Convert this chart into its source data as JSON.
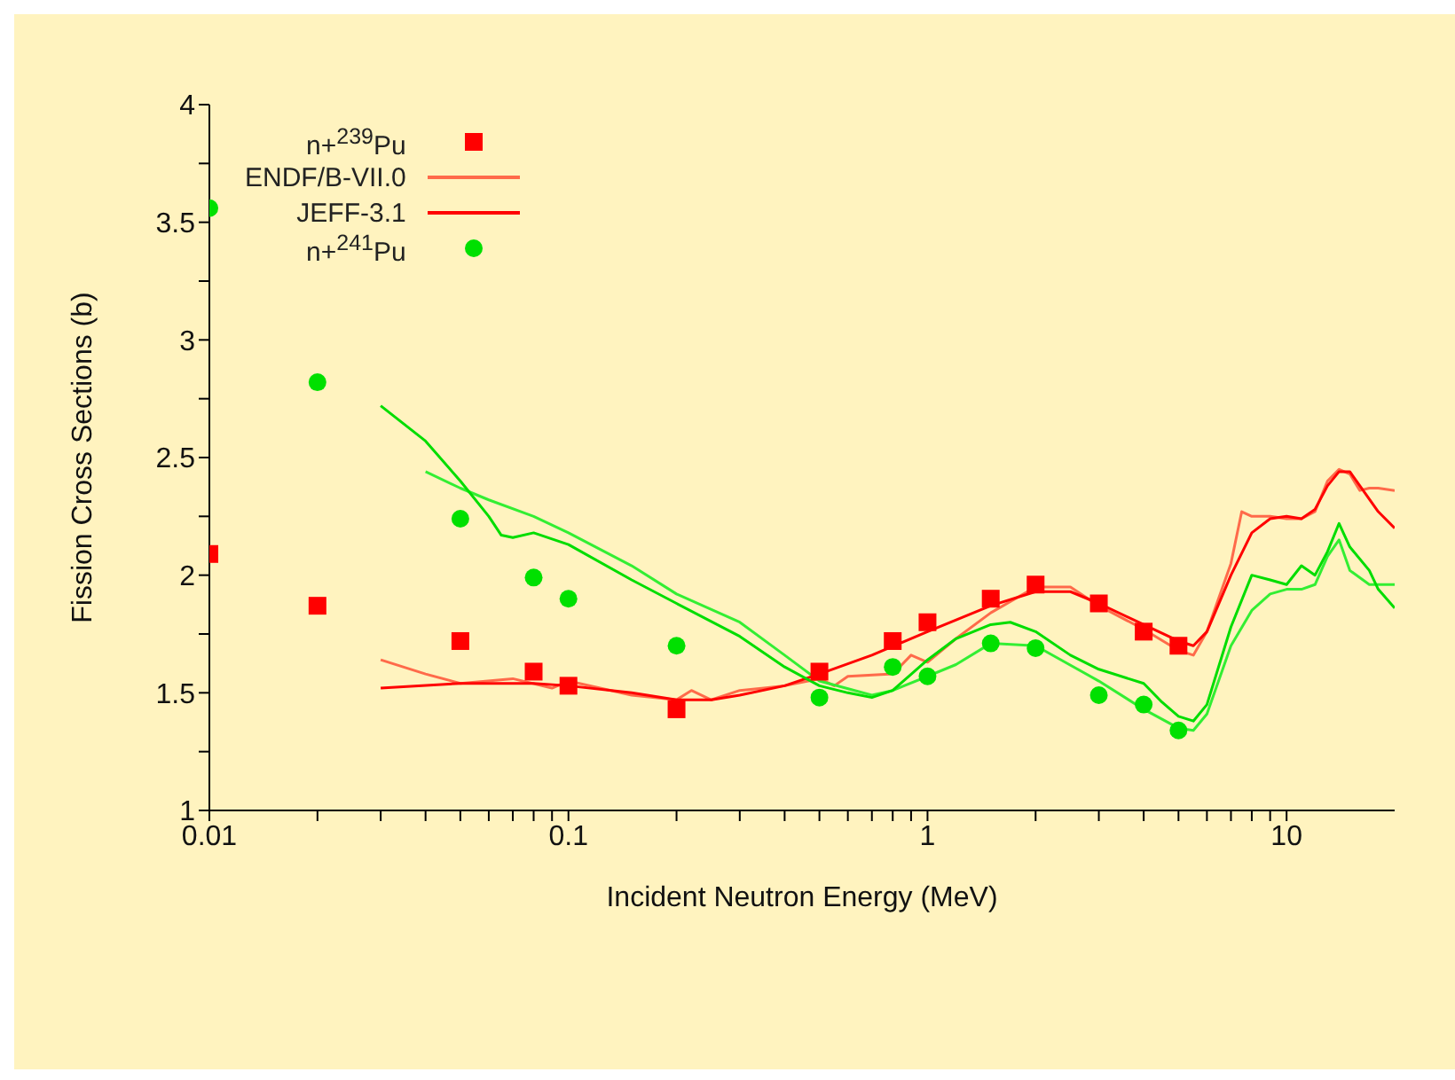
{
  "chart_data": {
    "type": "line",
    "xlabel": "Incident Neutron Energy (MeV)",
    "ylabel": "Fission Cross Sections (b)",
    "log": "x",
    "legend": "top left",
    "xlim": [
      0.01,
      20
    ],
    "ylim": [
      1,
      4
    ],
    "xticks": [
      0.01,
      {
        "value": 0.02,
        "label": null
      },
      {
        "value": 0.03,
        "label": null
      },
      {
        "value": 0.04,
        "label": null
      },
      {
        "value": 0.05,
        "label": null
      },
      {
        "value": 0.06,
        "label": null
      },
      {
        "value": 0.07,
        "label": null
      },
      {
        "value": 0.08,
        "label": null
      },
      {
        "value": 0.09,
        "label": null
      },
      0.1,
      {
        "value": 0.2,
        "label": null
      },
      {
        "value": 0.3,
        "label": null
      },
      {
        "value": 0.4,
        "label": null
      },
      {
        "value": 0.5,
        "label": null
      },
      {
        "value": 0.6,
        "label": null
      },
      {
        "value": 0.7,
        "label": null
      },
      {
        "value": 0.8,
        "label": null
      },
      {
        "value": 0.9,
        "label": null
      },
      1,
      {
        "value": 2,
        "label": null
      },
      {
        "value": 3,
        "label": null
      },
      {
        "value": 4,
        "label": null
      },
      {
        "value": 5,
        "label": null
      },
      {
        "value": 6,
        "label": null
      },
      {
        "value": 7,
        "label": null
      },
      {
        "value": 8,
        "label": null
      },
      {
        "value": 9,
        "label": null
      },
      10
    ],
    "yticks": [
      1,
      {
        "value": 1.25,
        "label": null
      },
      1.5,
      {
        "value": 1.75,
        "label": null
      },
      2,
      {
        "value": 2.25,
        "label": null
      },
      2.5,
      {
        "value": 2.75,
        "label": null
      },
      3,
      {
        "value": 3.25,
        "label": null
      },
      3.5,
      {
        "value": 3.75,
        "label": null
      },
      4
    ],
    "series": [
      {
        "name": "n+$^{239}$Pu",
        "type": "scatter",
        "marker": "square",
        "color": "#ff0000",
        "x": [
          0.01,
          0.02,
          0.05,
          0.08,
          0.1,
          0.2,
          0.5,
          0.8,
          1,
          1.5,
          2,
          3,
          4,
          5
        ],
        "values": [
          2.09,
          1.87,
          1.72,
          1.59,
          1.53,
          1.43,
          1.59,
          1.72,
          1.8,
          1.9,
          1.96,
          1.88,
          1.76,
          1.7
        ]
      },
      {
        "name": "ENDF/B-VII.0",
        "marker": "none",
        "color": "#ff6a4a",
        "x": [
          0.03,
          0.04,
          0.05,
          0.07,
          0.09,
          0.1,
          0.15,
          0.2,
          0.22,
          0.25,
          0.3,
          0.35,
          0.4,
          0.5,
          0.55,
          0.6,
          0.8,
          0.9,
          1,
          1.2,
          1.5,
          2,
          2.5,
          3,
          4,
          5,
          5.5,
          6,
          7,
          7.5,
          8,
          9,
          10,
          11,
          12,
          13,
          14,
          15,
          16,
          17,
          18,
          20
        ],
        "values": [
          1.64,
          1.58,
          1.54,
          1.56,
          1.52,
          1.55,
          1.49,
          1.47,
          1.51,
          1.47,
          1.51,
          1.52,
          1.53,
          1.56,
          1.53,
          1.57,
          1.58,
          1.66,
          1.63,
          1.73,
          1.84,
          1.95,
          1.95,
          1.87,
          1.77,
          1.68,
          1.66,
          1.76,
          2.05,
          2.27,
          2.25,
          2.25,
          2.24,
          2.24,
          2.27,
          2.4,
          2.45,
          2.43,
          2.36,
          2.37,
          2.37,
          2.36
        ]
      },
      {
        "name": "JEFF-3.1",
        "marker": "none",
        "color": "#ff0000",
        "x": [
          0.03,
          0.05,
          0.08,
          0.1,
          0.15,
          0.2,
          0.25,
          0.3,
          0.4,
          0.5,
          0.7,
          1,
          1.5,
          2,
          2.5,
          3,
          4,
          5,
          5.5,
          6,
          7,
          8,
          9,
          10,
          11,
          12,
          13,
          14,
          15,
          16,
          18,
          20
        ],
        "values": [
          1.52,
          1.54,
          1.54,
          1.53,
          1.5,
          1.47,
          1.47,
          1.49,
          1.53,
          1.58,
          1.66,
          1.76,
          1.87,
          1.93,
          1.93,
          1.88,
          1.79,
          1.72,
          1.7,
          1.76,
          2.0,
          2.18,
          2.24,
          2.25,
          2.24,
          2.28,
          2.38,
          2.44,
          2.44,
          2.38,
          2.27,
          2.2
        ]
      },
      {
        "name": "n+$^{241}$Pu",
        "type": "scatter",
        "marker": "circle",
        "color": "#00e000",
        "x": [
          0.01,
          0.02,
          0.05,
          0.08,
          0.1,
          0.2,
          0.5,
          0.8,
          1,
          1.5,
          2,
          3,
          4,
          5
        ],
        "values": [
          3.56,
          2.82,
          2.24,
          1.99,
          1.9,
          1.7,
          1.48,
          1.61,
          1.57,
          1.71,
          1.69,
          1.49,
          1.45,
          1.34
        ]
      },
      {
        "marker": "none",
        "color": "#33ee33",
        "x": [
          0.04,
          0.05,
          0.06,
          0.08,
          0.1,
          0.15,
          0.2,
          0.3,
          0.4,
          0.5,
          0.7,
          0.8,
          1,
          1.2,
          1.5,
          2,
          3,
          4,
          5,
          5.5,
          6,
          7,
          8,
          9,
          10,
          11,
          12,
          13,
          14,
          15,
          17,
          20
        ],
        "values": [
          2.44,
          2.37,
          2.32,
          2.25,
          2.18,
          2.04,
          1.92,
          1.8,
          1.66,
          1.55,
          1.49,
          1.51,
          1.57,
          1.62,
          1.71,
          1.7,
          1.55,
          1.43,
          1.35,
          1.34,
          1.41,
          1.7,
          1.85,
          1.92,
          1.94,
          1.94,
          1.96,
          2.08,
          2.15,
          2.02,
          1.96,
          1.96
        ]
      },
      {
        "marker": "none",
        "color": "#00dd00",
        "x": [
          0.03,
          0.04,
          0.05,
          0.06,
          0.065,
          0.07,
          0.08,
          0.1,
          0.15,
          0.2,
          0.3,
          0.4,
          0.5,
          0.6,
          0.7,
          0.8,
          1,
          1.2,
          1.5,
          1.7,
          2,
          2.5,
          3,
          4,
          4.5,
          5,
          5.5,
          6,
          7,
          8,
          9,
          10,
          11,
          12,
          13,
          14,
          15,
          17,
          18,
          20
        ],
        "values": [
          2.72,
          2.57,
          2.4,
          2.25,
          2.17,
          2.16,
          2.18,
          2.13,
          1.98,
          1.88,
          1.74,
          1.61,
          1.53,
          1.5,
          1.48,
          1.51,
          1.64,
          1.73,
          1.79,
          1.8,
          1.76,
          1.66,
          1.6,
          1.54,
          1.46,
          1.4,
          1.38,
          1.45,
          1.78,
          2.0,
          1.98,
          1.96,
          2.04,
          2.0,
          2.1,
          2.22,
          2.12,
          2.02,
          1.94,
          1.86
        ]
      }
    ]
  }
}
